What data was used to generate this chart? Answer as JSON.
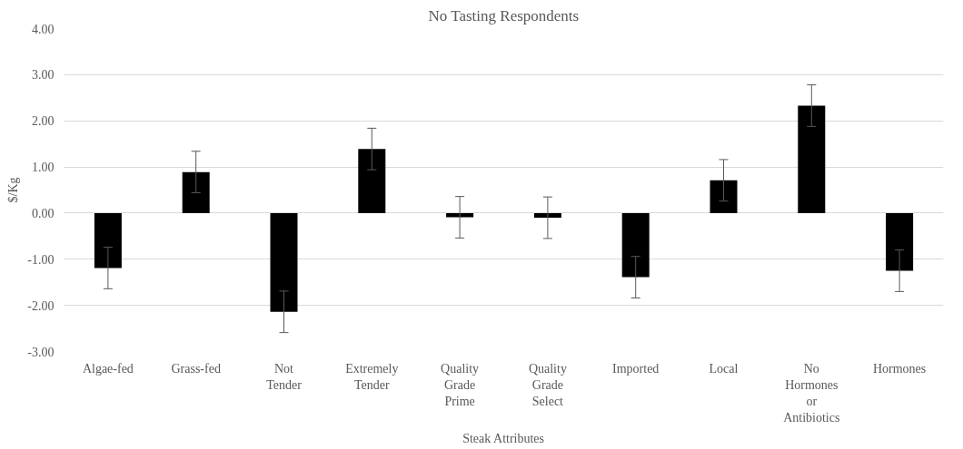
{
  "chart_data": {
    "type": "bar",
    "title": "No Tasting Respondents",
    "xlabel": "Steak Attributes",
    "ylabel": "$/Kg",
    "categories": [
      "Algae-fed",
      "Grass-fed",
      "Not Tender",
      "Extremely Tender",
      "Quality Grade Prime",
      "Quality Grade Select",
      "Imported",
      "Local",
      "No Hormones or Antibiotics",
      "Hormones"
    ],
    "values": [
      -1.19,
      0.89,
      -2.14,
      1.39,
      -0.09,
      -0.1,
      -1.39,
      0.71,
      2.33,
      -1.25
    ],
    "errors": [
      0.45,
      0.45,
      0.45,
      0.45,
      0.45,
      0.45,
      0.45,
      0.45,
      0.45,
      0.45
    ],
    "color": "#000000",
    "ylim": [
      -3,
      4
    ],
    "yticks": [
      {
        "value": -3,
        "label": "-3.00"
      },
      {
        "value": -2,
        "label": "-2.00"
      },
      {
        "value": -1,
        "label": "-1.00"
      },
      {
        "value": 0,
        "label": "0.00"
      },
      {
        "value": 1,
        "label": "1.00"
      },
      {
        "value": 2,
        "label": "2.00"
      },
      {
        "value": 3,
        "label": "3.00"
      },
      {
        "value": 4,
        "label": "4.00"
      }
    ],
    "grid": "y"
  }
}
